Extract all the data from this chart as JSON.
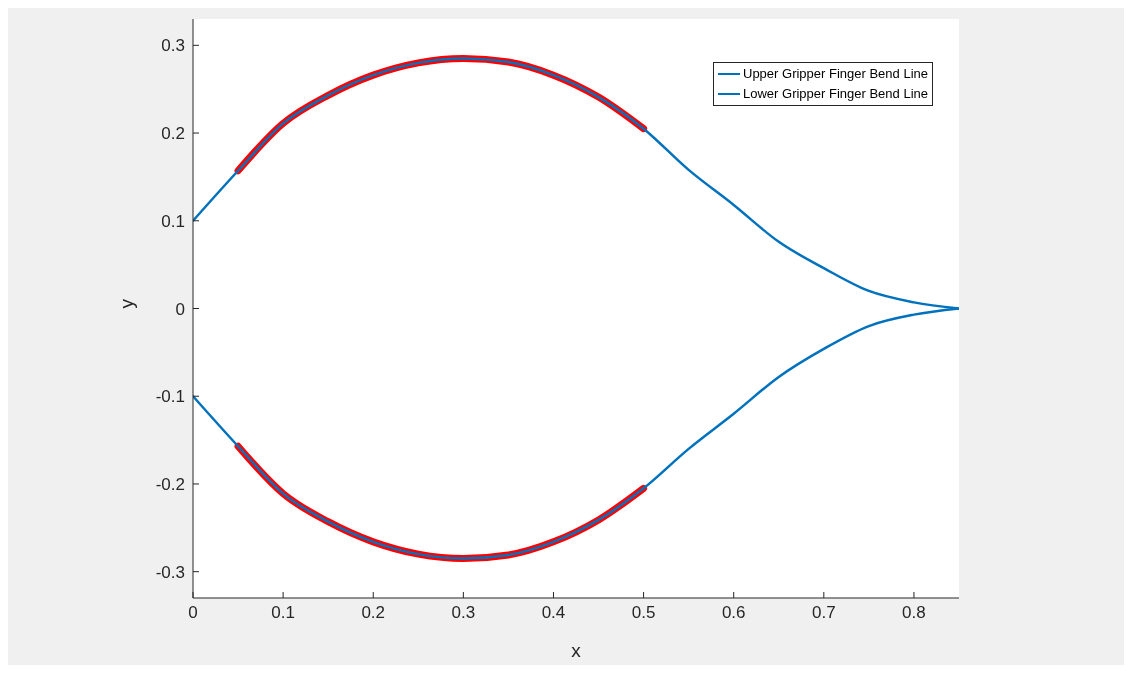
{
  "chart_data": {
    "type": "line",
    "xlabel": "x",
    "ylabel": "y",
    "xlim": [
      0,
      0.85
    ],
    "ylim": [
      -0.33,
      0.33
    ],
    "xticks": [
      0,
      0.1,
      0.2,
      0.3,
      0.4,
      0.5,
      0.6,
      0.7,
      0.8
    ],
    "yticks": [
      -0.3,
      -0.2,
      -0.1,
      0,
      0.1,
      0.2,
      0.3
    ],
    "grid": false,
    "legend": "top right",
    "marker": "none",
    "line_style": "solid",
    "series": [
      {
        "name": "Upper Gripper Finger Bend Line",
        "color": "#0072bd",
        "x": [
          0,
          0.05,
          0.1,
          0.15,
          0.2,
          0.25,
          0.3,
          0.35,
          0.4,
          0.45,
          0.5,
          0.55,
          0.6,
          0.65,
          0.7,
          0.75,
          0.8,
          0.85
        ],
        "values": [
          0.1,
          0.157,
          0.211,
          0.243,
          0.266,
          0.28,
          0.285,
          0.281,
          0.266,
          0.241,
          0.205,
          0.158,
          0.118,
          0.076,
          0.046,
          0.02,
          0.007,
          0
        ]
      },
      {
        "name": "Lower Gripper Finger Bend Line",
        "color": "#0072bd",
        "x": [
          0,
          0.05,
          0.1,
          0.15,
          0.2,
          0.25,
          0.3,
          0.35,
          0.4,
          0.45,
          0.5,
          0.55,
          0.6,
          0.65,
          0.7,
          0.75,
          0.8,
          0.85
        ],
        "values": [
          -0.1,
          -0.157,
          -0.211,
          -0.243,
          -0.266,
          -0.28,
          -0.285,
          -0.281,
          -0.266,
          -0.241,
          -0.205,
          -0.16,
          -0.12,
          -0.078,
          -0.046,
          -0.02,
          -0.007,
          0
        ]
      },
      {
        "color": "#ff0000",
        "x": [
          0.05,
          0.1,
          0.15,
          0.2,
          0.25,
          0.3,
          0.35,
          0.4,
          0.45,
          0.5
        ],
        "values": [
          0.157,
          0.211,
          0.243,
          0.266,
          0.28,
          0.285,
          0.281,
          0.266,
          0.241,
          0.205
        ]
      },
      {
        "color": "#ff0000",
        "x": [
          0.05,
          0.1,
          0.15,
          0.2,
          0.25,
          0.3,
          0.35,
          0.4,
          0.45,
          0.5
        ],
        "values": [
          -0.157,
          -0.211,
          -0.243,
          -0.266,
          -0.28,
          -0.285,
          -0.281,
          -0.266,
          -0.241,
          -0.205
        ]
      }
    ]
  }
}
